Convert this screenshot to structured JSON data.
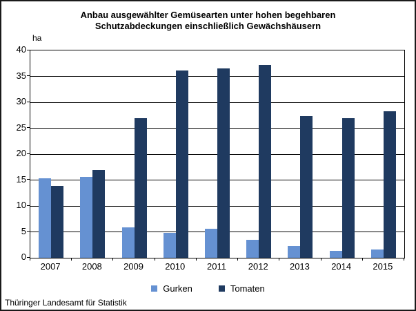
{
  "title": {
    "line1": "Anbau ausgewählter Gemüsearten unter hohen begehbaren",
    "line2": "Schutzabdeckungen einschließlich Gewächshäusern"
  },
  "y_axis": {
    "unit": "ha"
  },
  "chart_data": {
    "type": "bar",
    "title": "Anbau ausgewählter Gemüsearten unter hohen begehbaren Schutzabdeckungen einschließlich Gewächshäusern",
    "xlabel": "",
    "ylabel": "ha",
    "ylim": [
      0,
      40
    ],
    "y_step": 5,
    "y_ticks": [
      0,
      5,
      10,
      15,
      20,
      25,
      30,
      35,
      40
    ],
    "grid": true,
    "legend_position": "bottom",
    "categories": [
      "2007",
      "2008",
      "2009",
      "2010",
      "2011",
      "2012",
      "2013",
      "2014",
      "2015"
    ],
    "series": [
      {
        "name": "Gurken",
        "color": "#6591D2",
        "values": [
          15.3,
          15.6,
          5.8,
          4.8,
          5.6,
          3.4,
          2.2,
          1.3,
          1.6
        ]
      },
      {
        "name": "Tomaten",
        "color": "#1F3A60",
        "values": [
          13.9,
          16.9,
          26.9,
          36.1,
          36.5,
          37.2,
          27.3,
          26.9,
          28.2
        ]
      }
    ]
  },
  "legend": {
    "items": [
      {
        "label": "Gurken",
        "color": "#6591D2"
      },
      {
        "label": "Tomaten",
        "color": "#1F3A60"
      }
    ]
  },
  "footer": {
    "source": "Thüringer Landesamt für Statistik"
  }
}
